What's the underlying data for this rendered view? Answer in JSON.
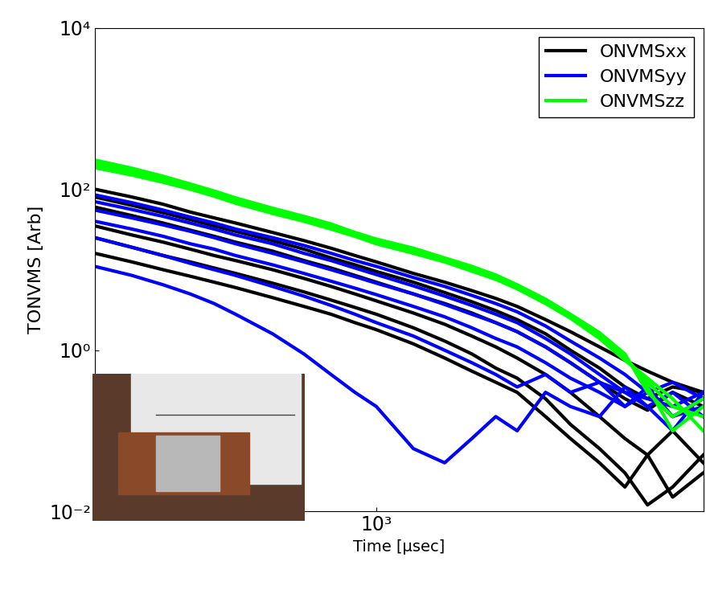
{
  "chart_data": {
    "type": "line",
    "x_label": "Time [µsec]",
    "y_label": "TONVMS [Arb]",
    "log": true,
    "legend": "upper right",
    "xlim": [
      250,
      5000
    ],
    "xticks": [
      {
        "value": 1000,
        "label": "10³"
      }
    ],
    "ylim": [
      0.01,
      10000
    ],
    "yticks": [
      {
        "value": 0.01,
        "label": "10⁻²"
      },
      {
        "value": 1,
        "label": "10⁰"
      },
      {
        "value": 100,
        "label": "10²"
      },
      {
        "value": 10000,
        "label": "10⁴"
      }
    ],
    "x": [
      250,
      300,
      350,
      400,
      450,
      500,
      600,
      700,
      800,
      900,
      1000,
      1200,
      1400,
      1600,
      1800,
      2000,
      2300,
      2600,
      3000,
      3400,
      3800,
      4300,
      5000
    ],
    "series": [
      {
        "name": "ONVMSxx",
        "color": "#000000",
        "values": [
          [
            100,
            80,
            65,
            52,
            44,
            38,
            29,
            23,
            18.5,
            15,
            12.5,
            9,
            7,
            5.5,
            4.4,
            3.5,
            2.4,
            1.7,
            1.1,
            0.75,
            0.55,
            0.4,
            0.3
          ],
          [
            60,
            47,
            38,
            31,
            26,
            22,
            17,
            13,
            10.5,
            8.5,
            7,
            5,
            3.8,
            2.9,
            2.2,
            1.7,
            1.1,
            0.7,
            0.4,
            0.25,
            0.18,
            0.3,
            0.2
          ],
          [
            35,
            27,
            22,
            18,
            15,
            13,
            10,
            7.8,
            6.2,
            5,
            4.1,
            2.9,
            2.1,
            1.5,
            1.1,
            0.8,
            0.5,
            0.3,
            0.15,
            0.08,
            0.05,
            0.1,
            0.04
          ],
          [
            25,
            19,
            15,
            12.5,
            10.5,
            9,
            6.8,
            5.3,
            4.2,
            3.4,
            2.8,
            1.9,
            1.3,
            0.9,
            0.6,
            0.45,
            0.25,
            0.12,
            0.06,
            0.03,
            0.012,
            0.02,
            0.05
          ],
          [
            16,
            12.5,
            10,
            8.3,
            7,
            6,
            4.5,
            3.5,
            2.8,
            2.2,
            1.8,
            1.2,
            0.8,
            0.55,
            0.4,
            0.3,
            0.15,
            0.08,
            0.04,
            0.02,
            0.05,
            0.015,
            0.03
          ],
          [
            80,
            63,
            51,
            42,
            35,
            30,
            23,
            18,
            14,
            11.5,
            9.5,
            7,
            5.2,
            4,
            3.1,
            2.4,
            1.6,
            1.0,
            0.6,
            0.35,
            0.25,
            0.35,
            0.3
          ]
        ]
      },
      {
        "name": "ONVMSyy",
        "color": "#0000ff",
        "values": [
          [
            85,
            68,
            55,
            45,
            38,
            32,
            25,
            20,
            16,
            13,
            11,
            8,
            6.2,
            4.8,
            3.8,
            3.0,
            2.0,
            1.3,
            0.8,
            0.5,
            0.3,
            0.4,
            0.25
          ],
          [
            55,
            44,
            36,
            30,
            25,
            21,
            16,
            12.5,
            10,
            8.2,
            6.8,
            5,
            3.7,
            2.8,
            2.2,
            1.7,
            1.1,
            0.7,
            0.4,
            0.3,
            0.2,
            0.3,
            0.15
          ],
          [
            40,
            32,
            26,
            21,
            18,
            15,
            11.5,
            9,
            7.2,
            5.9,
            4.9,
            3.5,
            2.6,
            1.9,
            1.4,
            1.1,
            0.7,
            0.45,
            0.3,
            0.2,
            0.35,
            0.15,
            0.2
          ],
          [
            25,
            19,
            15,
            12,
            10,
            8.5,
            6.2,
            4.7,
            3.6,
            2.8,
            2.2,
            1.5,
            1.0,
            0.7,
            0.5,
            0.35,
            0.5,
            0.3,
            0.4,
            0.2,
            0.3,
            0.15,
            0.25
          ],
          [
            11,
            8.5,
            6.5,
            5,
            3.8,
            2.8,
            1.6,
            0.9,
            0.5,
            0.3,
            0.2,
            0.06,
            0.04,
            0.08,
            0.15,
            0.1,
            0.3,
            0.2,
            0.15,
            0.35,
            0.2,
            0.1,
            0.3
          ],
          [
            70,
            56,
            46,
            38,
            32,
            27,
            21,
            16,
            13,
            10.5,
            8.7,
            6.3,
            4.7,
            3.6,
            2.8,
            2.2,
            1.4,
            0.9,
            0.5,
            0.3,
            0.25,
            0.2,
            0.3
          ]
        ]
      },
      {
        "name": "ONVMSzz",
        "color": "#00ff00",
        "values": [
          [
            200,
            160,
            130,
            105,
            85,
            70,
            52,
            42,
            34,
            27,
            22,
            17,
            13,
            10,
            8,
            6,
            4,
            2.6,
            1.5,
            0.8,
            0.4,
            0.2,
            0.15
          ],
          [
            215,
            170,
            138,
            110,
            90,
            74,
            55,
            44,
            35,
            28,
            23,
            17.5,
            13.5,
            10.5,
            8.3,
            6.2,
            4.1,
            2.7,
            1.6,
            0.85,
            0.35,
            0.1,
            0.2
          ],
          [
            185,
            150,
            122,
            100,
            82,
            67,
            50,
            40,
            32,
            26,
            21,
            16,
            12.5,
            9.6,
            7.6,
            5.8,
            3.8,
            2.5,
            1.4,
            0.75,
            0.45,
            0.25,
            0.1
          ],
          [
            230,
            182,
            145,
            116,
            95,
            78,
            58,
            46,
            37,
            29,
            24,
            18.5,
            14,
            11,
            8.6,
            6.5,
            4.3,
            2.8,
            1.65,
            0.9,
            0.3,
            0.15,
            0.25
          ]
        ]
      }
    ]
  }
}
